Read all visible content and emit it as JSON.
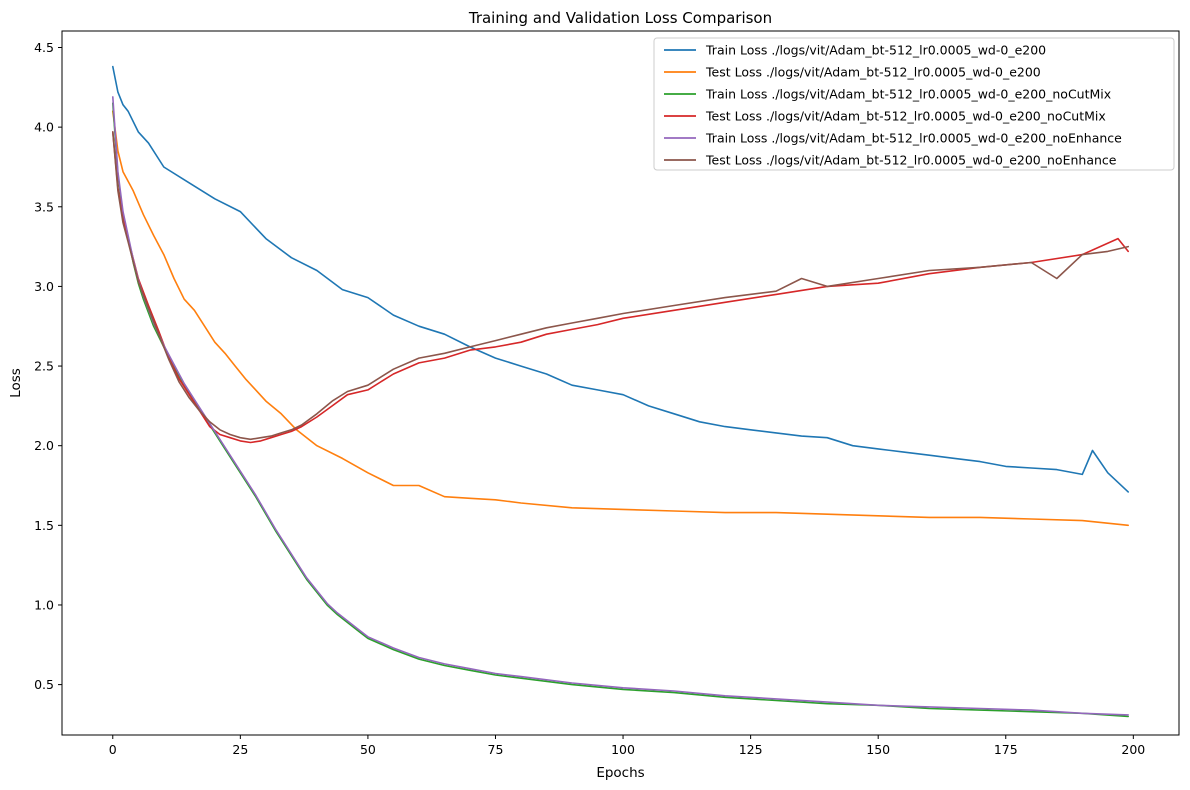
{
  "chart_data": {
    "type": "line",
    "title": "Training and Validation Loss Comparison",
    "xlabel": "Epochs",
    "ylabel": "Loss",
    "xlim": [
      -9.95,
      208.95
    ],
    "ylim": [
      0.1836,
      4.6036
    ],
    "xticks": [
      0,
      25,
      50,
      75,
      100,
      125,
      150,
      175,
      200
    ],
    "yticks": [
      0.5,
      1.0,
      1.5,
      2.0,
      2.5,
      3.0,
      3.5,
      4.0,
      4.5
    ],
    "ytick_labels": [
      "0.5",
      "1.0",
      "1.5",
      "2.0",
      "2.5",
      "3.0",
      "3.5",
      "4.0",
      "4.5"
    ],
    "grid": false,
    "legend_position": "upper right",
    "series": [
      {
        "name": "Train Loss ./logs/vit/Adam_bt-512_lr0.0005_wd-0_e200",
        "color": "#1f77b4",
        "x": [
          0,
          1,
          2,
          3,
          5,
          7,
          10,
          15,
          20,
          25,
          30,
          35,
          40,
          45,
          50,
          55,
          60,
          65,
          70,
          75,
          80,
          85,
          90,
          95,
          100,
          105,
          110,
          115,
          120,
          125,
          130,
          135,
          140,
          145,
          150,
          155,
          160,
          165,
          170,
          175,
          180,
          185,
          190,
          192,
          195,
          199
        ],
        "y": [
          4.38,
          4.22,
          4.14,
          4.1,
          3.97,
          3.9,
          3.75,
          3.65,
          3.55,
          3.47,
          3.3,
          3.18,
          3.1,
          2.98,
          2.93,
          2.82,
          2.75,
          2.7,
          2.62,
          2.55,
          2.5,
          2.45,
          2.38,
          2.35,
          2.32,
          2.25,
          2.2,
          2.15,
          2.12,
          2.1,
          2.08,
          2.06,
          2.05,
          2.0,
          1.98,
          1.96,
          1.94,
          1.92,
          1.9,
          1.87,
          1.86,
          1.85,
          1.82,
          1.97,
          1.83,
          1.71
        ]
      },
      {
        "name": "Test Loss ./logs/vit/Adam_bt-512_lr0.0005_wd-0_e200",
        "color": "#ff7f0e",
        "x": [
          0,
          1,
          2,
          4,
          6,
          8,
          10,
          12,
          14,
          16,
          18,
          20,
          22,
          24,
          26,
          28,
          30,
          33,
          36,
          40,
          45,
          50,
          55,
          60,
          65,
          70,
          75,
          80,
          90,
          100,
          110,
          120,
          130,
          140,
          150,
          160,
          170,
          180,
          190,
          199
        ],
        "y": [
          4.1,
          3.85,
          3.72,
          3.6,
          3.45,
          3.32,
          3.2,
          3.05,
          2.92,
          2.85,
          2.75,
          2.65,
          2.58,
          2.5,
          2.42,
          2.35,
          2.28,
          2.2,
          2.1,
          2.0,
          1.92,
          1.83,
          1.75,
          1.75,
          1.68,
          1.67,
          1.66,
          1.64,
          1.61,
          1.6,
          1.59,
          1.58,
          1.58,
          1.57,
          1.56,
          1.55,
          1.55,
          1.54,
          1.53,
          1.5
        ]
      },
      {
        "name": "Train Loss ./logs/vit/Adam_bt-512_lr0.0005_wd-0_e200_noCutMix",
        "color": "#2ca02c",
        "x": [
          0,
          1,
          2,
          3,
          4,
          5,
          6,
          8,
          10,
          12,
          14,
          16,
          18,
          20,
          22,
          24,
          26,
          28,
          30,
          32,
          34,
          36,
          38,
          40,
          42,
          44,
          46,
          48,
          50,
          55,
          60,
          65,
          70,
          75,
          80,
          90,
          100,
          110,
          120,
          130,
          140,
          150,
          160,
          170,
          180,
          190,
          199
        ],
        "y": [
          4.15,
          3.7,
          3.45,
          3.3,
          3.15,
          3.02,
          2.92,
          2.75,
          2.62,
          2.5,
          2.38,
          2.28,
          2.18,
          2.08,
          1.98,
          1.88,
          1.78,
          1.68,
          1.57,
          1.46,
          1.36,
          1.26,
          1.16,
          1.08,
          1.0,
          0.94,
          0.89,
          0.84,
          0.79,
          0.72,
          0.66,
          0.62,
          0.59,
          0.56,
          0.54,
          0.5,
          0.47,
          0.45,
          0.42,
          0.4,
          0.38,
          0.37,
          0.35,
          0.34,
          0.33,
          0.32,
          0.3
        ]
      },
      {
        "name": "Test Loss ./logs/vit/Adam_bt-512_lr0.0005_wd-0_e200_noCutMix",
        "color": "#d62728",
        "x": [
          0,
          1,
          2,
          3,
          5,
          7,
          9,
          11,
          13,
          15,
          17,
          19,
          21,
          23,
          25,
          27,
          29,
          31,
          33,
          35,
          37,
          40,
          43,
          46,
          50,
          55,
          60,
          65,
          70,
          75,
          80,
          85,
          90,
          95,
          100,
          110,
          120,
          130,
          140,
          150,
          160,
          170,
          180,
          190,
          197,
          199
        ],
        "y": [
          3.97,
          3.62,
          3.42,
          3.3,
          3.05,
          2.88,
          2.72,
          2.55,
          2.42,
          2.32,
          2.22,
          2.12,
          2.07,
          2.05,
          2.03,
          2.02,
          2.03,
          2.05,
          2.07,
          2.09,
          2.12,
          2.18,
          2.25,
          2.32,
          2.35,
          2.45,
          2.52,
          2.55,
          2.6,
          2.62,
          2.65,
          2.7,
          2.73,
          2.76,
          2.8,
          2.85,
          2.9,
          2.95,
          3.0,
          3.02,
          3.08,
          3.12,
          3.15,
          3.2,
          3.3,
          3.22
        ]
      },
      {
        "name": "Train Loss ./logs/vit/Adam_bt-512_lr0.0005_wd-0_e200_noEnhance",
        "color": "#9467bd",
        "x": [
          0,
          1,
          2,
          3,
          4,
          5,
          6,
          8,
          10,
          12,
          14,
          16,
          18,
          20,
          22,
          24,
          26,
          28,
          30,
          32,
          34,
          36,
          38,
          40,
          42,
          44,
          46,
          48,
          50,
          55,
          60,
          65,
          70,
          75,
          80,
          90,
          100,
          110,
          120,
          130,
          140,
          150,
          160,
          170,
          180,
          190,
          199
        ],
        "y": [
          4.19,
          3.72,
          3.47,
          3.32,
          3.17,
          3.04,
          2.94,
          2.77,
          2.63,
          2.51,
          2.39,
          2.29,
          2.19,
          2.09,
          1.99,
          1.89,
          1.79,
          1.69,
          1.58,
          1.47,
          1.37,
          1.27,
          1.17,
          1.09,
          1.01,
          0.95,
          0.9,
          0.85,
          0.8,
          0.73,
          0.67,
          0.63,
          0.6,
          0.57,
          0.55,
          0.51,
          0.48,
          0.46,
          0.43,
          0.41,
          0.39,
          0.37,
          0.36,
          0.35,
          0.34,
          0.32,
          0.31
        ]
      },
      {
        "name": "Test Loss ./logs/vit/Adam_bt-512_lr0.0005_wd-0_e200_noEnhance",
        "color": "#8c564b",
        "x": [
          0,
          1,
          2,
          3,
          5,
          7,
          9,
          11,
          13,
          15,
          17,
          19,
          21,
          23,
          25,
          27,
          29,
          31,
          33,
          35,
          37,
          40,
          43,
          46,
          50,
          55,
          60,
          65,
          70,
          75,
          80,
          85,
          90,
          95,
          100,
          110,
          120,
          130,
          135,
          140,
          150,
          160,
          170,
          180,
          185,
          190,
          195,
          199
        ],
        "y": [
          3.97,
          3.6,
          3.4,
          3.28,
          3.03,
          2.86,
          2.7,
          2.54,
          2.4,
          2.3,
          2.22,
          2.15,
          2.1,
          2.07,
          2.05,
          2.04,
          2.05,
          2.06,
          2.08,
          2.1,
          2.13,
          2.2,
          2.28,
          2.34,
          2.38,
          2.48,
          2.55,
          2.58,
          2.62,
          2.66,
          2.7,
          2.74,
          2.77,
          2.8,
          2.83,
          2.88,
          2.93,
          2.97,
          3.05,
          3.0,
          3.05,
          3.1,
          3.12,
          3.15,
          3.05,
          3.2,
          3.22,
          3.25
        ]
      }
    ]
  }
}
